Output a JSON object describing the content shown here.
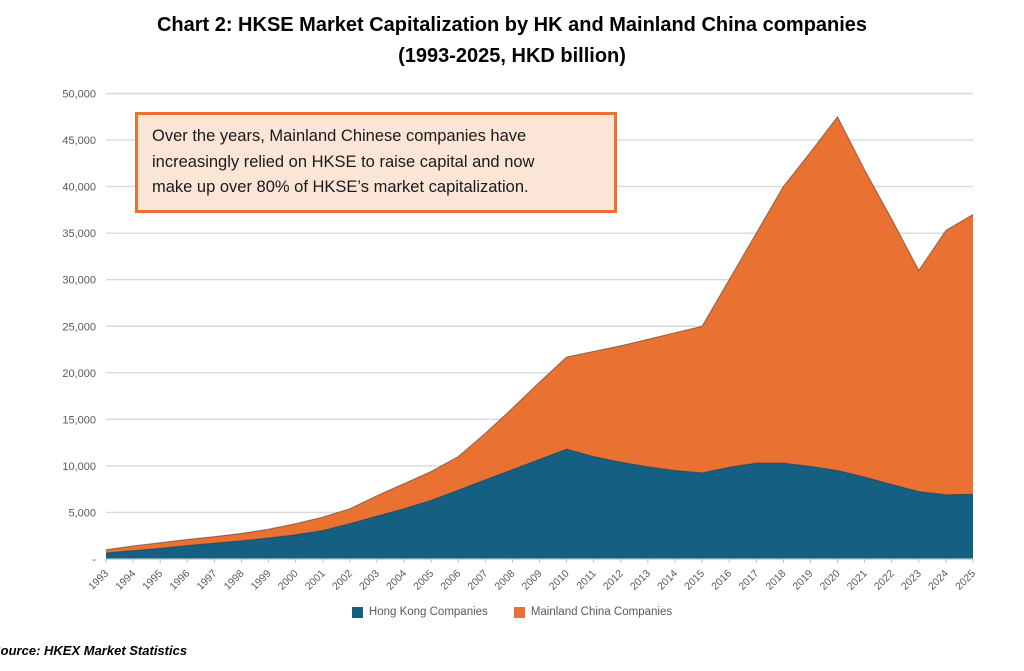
{
  "title": {
    "line1": "Chart 2: HKSE Market Capitalization by HK and Mainland China companies",
    "line2": "(1993-2025, HKD billion)"
  },
  "annotation": {
    "lines": [
      "Over the years, Mainland Chinese companies have",
      "increasingly relied on HKSE to raise capital and now",
      "make up over 80% of HKSE’s market capitalization."
    ]
  },
  "source": "Source: HKEX Market Statistics",
  "colors": {
    "hk_blue": "#156082",
    "mainland_orange": "#E97132",
    "annotation_fill": "#FBE5D6",
    "annotation_border": "#E97132",
    "gridline": "#D9D9D9",
    "axis_line": "#BFBFBF",
    "axis_text": "#595959",
    "title_text": "#000000"
  },
  "chart_data": {
    "type": "area",
    "stacked": true,
    "title": "Chart 2: HKSE Market Capitalization by HK and Mainland China companies (1993-2025, HKD billion)",
    "unit": "HKD billion",
    "xlabel": "",
    "ylabel": "",
    "ylim": [
      0,
      50000
    ],
    "ytick_step": 5000,
    "grid": "horizontal",
    "legend_position": "bottom",
    "yticks": [
      "50,000",
      "45,000",
      "40,000",
      "35,000",
      "30,000",
      "25,000",
      "20,000",
      "15,000",
      "10,000",
      "5,000",
      "-"
    ],
    "categories": [
      "1993",
      "1994",
      "1995",
      "1996",
      "1997",
      "1998",
      "1999",
      "2000",
      "2001",
      "2002",
      "2003",
      "2004",
      "2005",
      "2006",
      "2007",
      "2008",
      "2009",
      "2010",
      "2011",
      "2012",
      "2013",
      "2014",
      "2015",
      "2016",
      "2017",
      "2018",
      "2019",
      "2020",
      "2021",
      "2022",
      "2023",
      "2024",
      "2025"
    ],
    "series": [
      {
        "name": "Hong Kong Companies",
        "color": "#156082",
        "values": [
          650,
          900,
          1150,
          1450,
          1700,
          1950,
          2250,
          2600,
          3050,
          3800,
          4600,
          5400,
          6300,
          7400,
          8500,
          9600,
          10700,
          11800,
          11000,
          10400,
          9900,
          9500,
          9250,
          9850,
          10300,
          10300,
          9950,
          9500,
          8800,
          8000,
          7250,
          6900,
          6950
        ]
      },
      {
        "name": "Mainland China Companies",
        "color": "#E97132",
        "values": [
          350,
          500,
          600,
          650,
          700,
          800,
          950,
          1200,
          1450,
          1600,
          2200,
          2700,
          3100,
          3600,
          5000,
          6600,
          8300,
          9900,
          11300,
          12500,
          13700,
          14800,
          15750,
          20150,
          24700,
          29700,
          33750,
          38000,
          33000,
          28500,
          23750,
          28400,
          30050
        ]
      }
    ]
  }
}
